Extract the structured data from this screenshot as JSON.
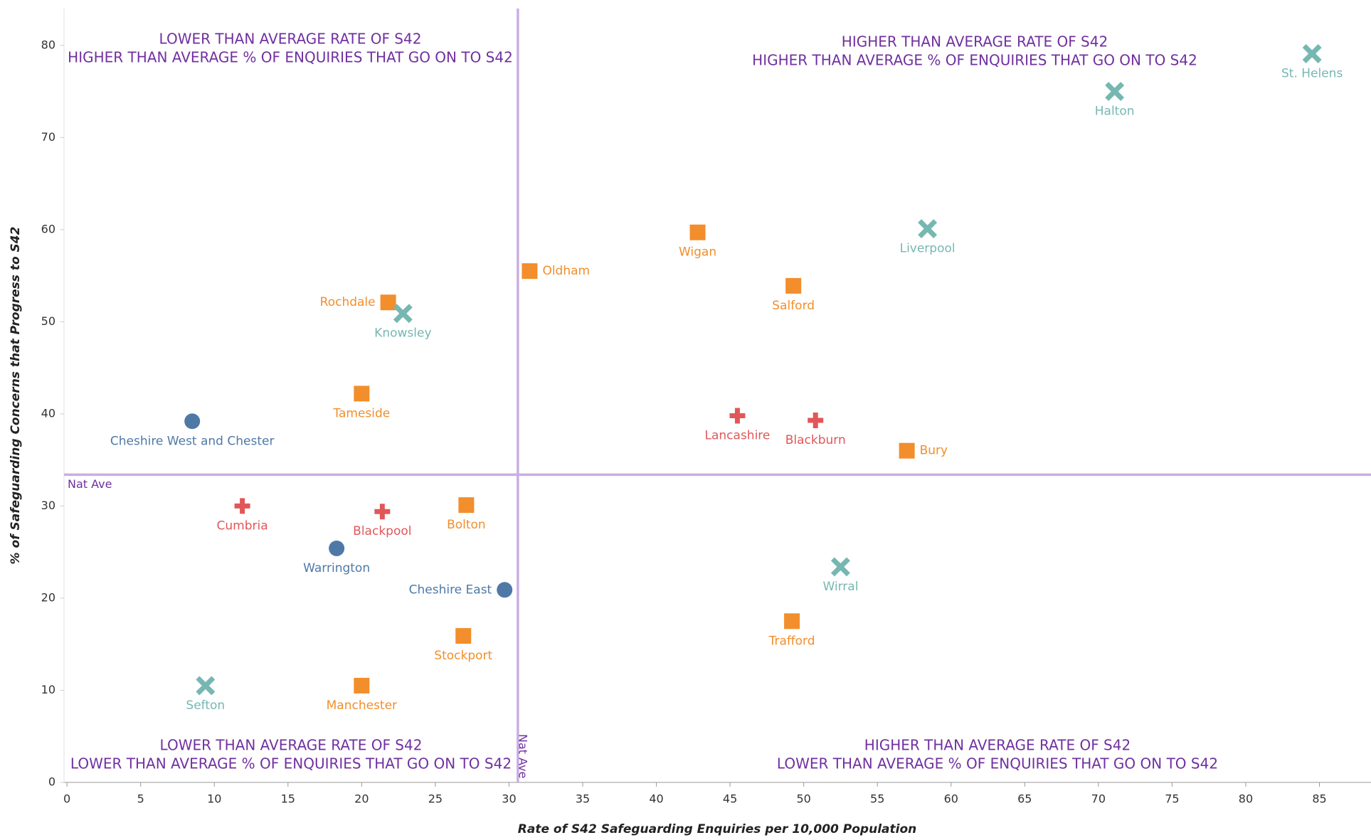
{
  "chart_data": {
    "type": "scatter",
    "x_label": "Rate of S42 Safeguarding Enquiries per 10,000 Population",
    "y_label": "% of Safeguarding Concerns that Progress to S42",
    "xlim": [
      -0.2,
      88.5
    ],
    "ylim": [
      0,
      84
    ],
    "xticks": [
      0,
      5,
      10,
      15,
      20,
      25,
      30,
      35,
      40,
      45,
      50,
      55,
      60,
      65,
      70,
      75,
      80,
      85
    ],
    "yticks": [
      0,
      10,
      20,
      30,
      40,
      50,
      60,
      70,
      80
    ],
    "reference_lines": {
      "x": 30.6,
      "y": 33.4,
      "label": "Nat Ave",
      "color": "#c9aee3"
    },
    "annotations": [
      [
        "LOWER THAN AVERAGE RATE OF S42",
        "HIGHER THAN AVERAGE % OF ENQUIRIES THAT GO ON TO S42"
      ],
      [
        "HIGHER THAN AVERAGE RATE OF S42",
        "HIGHER THAN AVERAGE % OF ENQUIRIES THAT GO ON TO S42"
      ],
      [
        "LOWER THAN AVERAGE RATE OF S42",
        "LOWER THAN AVERAGE % OF ENQUIRIES THAT GO ON TO S42"
      ],
      [
        "HIGHER THAN AVERAGE RATE OF S42",
        "LOWER THAN AVERAGE %  OF ENQUIRIES THAT GO ON TO S42"
      ]
    ],
    "series": [
      {
        "marker": "circle",
        "color": "#4e79a7",
        "labels": [
          "Cheshire West and Chester",
          "Warrington",
          "Cheshire East"
        ],
        "x": [
          8.5,
          18.3,
          29.7
        ],
        "values": [
          39.2,
          25.4,
          20.9
        ]
      },
      {
        "marker": "square",
        "color": "#f28e2b",
        "labels": [
          "Oldham",
          "Wigan",
          "Salford",
          "Rochdale",
          "Tameside",
          "Bury",
          "Bolton",
          "Stockport",
          "Manchester",
          "Trafford"
        ],
        "x": [
          31.4,
          42.8,
          49.3,
          21.8,
          20.0,
          57.0,
          27.1,
          26.9,
          20.0,
          49.2
        ],
        "values": [
          55.5,
          59.7,
          53.9,
          52.1,
          42.2,
          36.0,
          30.1,
          15.9,
          10.5,
          17.5
        ]
      },
      {
        "marker": "plus",
        "color": "#e15759",
        "labels": [
          "Lancashire",
          "Blackburn",
          "Cumbria",
          "Blackpool"
        ],
        "x": [
          45.5,
          50.8,
          11.9,
          21.4
        ],
        "values": [
          39.8,
          39.3,
          30.0,
          29.4
        ]
      },
      {
        "marker": "cross",
        "color": "#76b7b2",
        "labels": [
          "St. Helens",
          "Halton",
          "Liverpool",
          "Knowsley",
          "Wirral",
          "Sefton"
        ],
        "x": [
          84.5,
          71.1,
          58.4,
          22.8,
          52.5,
          9.4
        ],
        "values": [
          79.1,
          75.0,
          60.1,
          50.9,
          23.4,
          10.5
        ]
      }
    ]
  }
}
